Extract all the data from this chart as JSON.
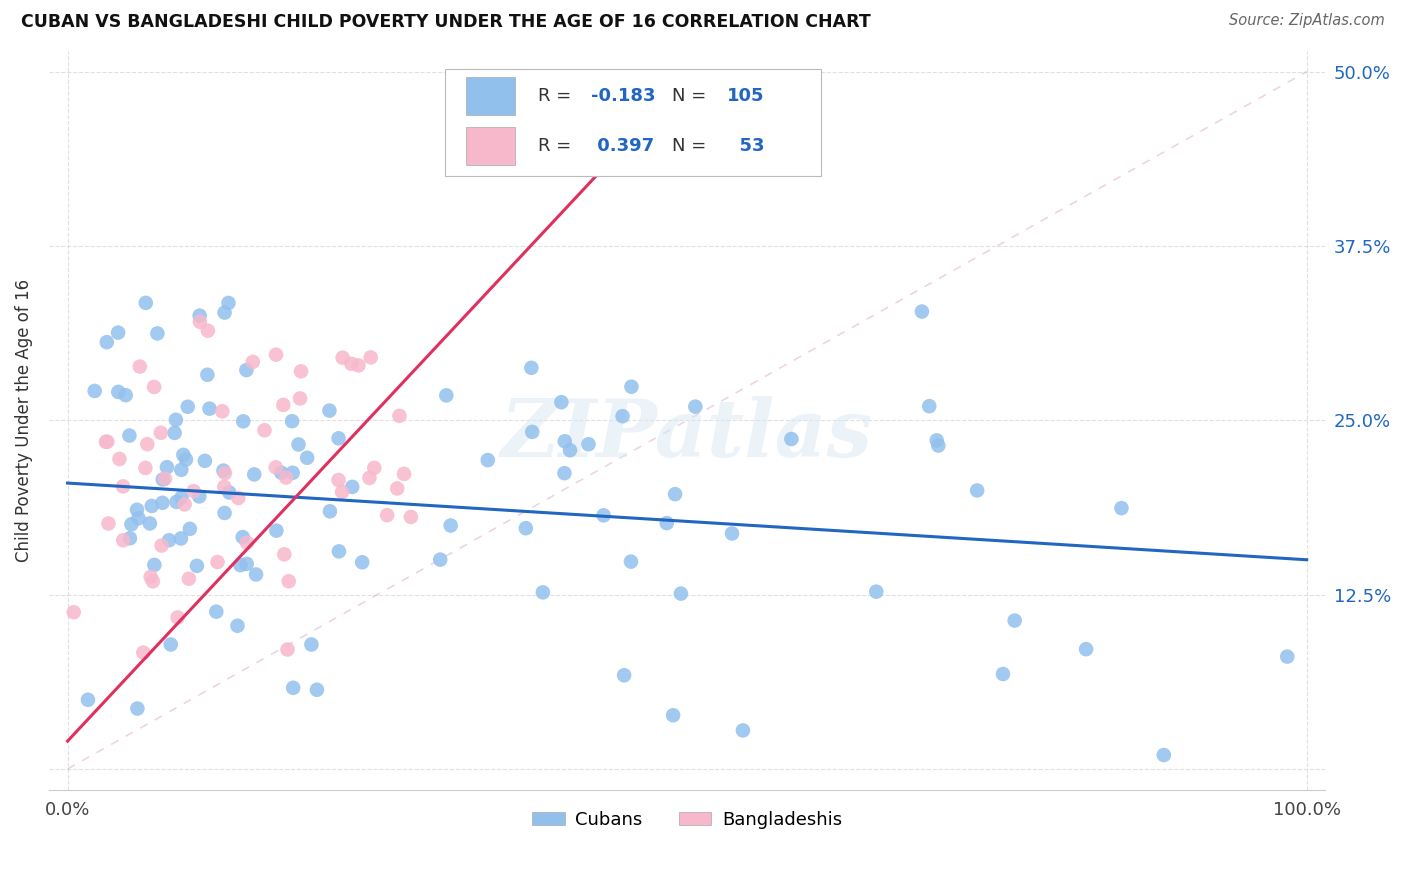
{
  "title": "CUBAN VS BANGLADESHI CHILD POVERTY UNDER THE AGE OF 16 CORRELATION CHART",
  "source": "Source: ZipAtlas.com",
  "ylabel": "Child Poverty Under the Age of 16",
  "xlim": [
    0.0,
    1.0
  ],
  "ylim": [
    0.0,
    0.5
  ],
  "x_tick_vals": [
    0.0,
    1.0
  ],
  "x_tick_labels": [
    "0.0%",
    "100.0%"
  ],
  "y_tick_vals": [
    0.0,
    0.125,
    0.25,
    0.375,
    0.5
  ],
  "y_tick_labels_right": [
    "",
    "12.5%",
    "25.0%",
    "37.5%",
    "50.0%"
  ],
  "cubans_color": "#92C0ED",
  "bangladeshis_color": "#F7B8CC",
  "cubans_line_color": "#2166C0",
  "bangladeshis_line_color": "#E03060",
  "legend_label_cubans": "Cubans",
  "legend_label_bangladeshis": "Bangladeshis",
  "R_cubans": -0.183,
  "N_cubans": 105,
  "R_bangladeshis": 0.397,
  "N_bangladeshis": 53,
  "watermark_text": "ZIPatlas",
  "background_color": "#ffffff",
  "grid_color": "#cccccc",
  "marker_size": 110,
  "cubans_line_intercept": 0.205,
  "cubans_line_slope": -0.055,
  "bangladeshis_line_intercept": 0.02,
  "bangladeshis_line_slope": 0.95,
  "bangladeshis_line_end_x": 0.48,
  "ref_line_color": "#DDAACC",
  "ref_line_alpha": 0.5
}
